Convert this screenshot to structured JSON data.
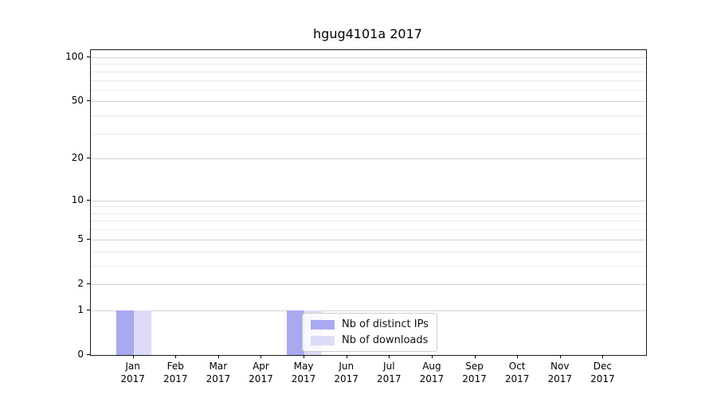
{
  "chart_data": {
    "type": "bar",
    "title": "hgug4101a 2017",
    "categories": [
      "Jan",
      "Feb",
      "Mar",
      "Apr",
      "May",
      "Jun",
      "Jul",
      "Aug",
      "Sep",
      "Oct",
      "Nov",
      "Dec"
    ],
    "year_label": "2017",
    "series": [
      {
        "name": "Nb of distinct IPs",
        "color": "#a9a9f0",
        "values": [
          1,
          0,
          0,
          0,
          1,
          0,
          0,
          0,
          0,
          0,
          0,
          0
        ]
      },
      {
        "name": "Nb of downloads",
        "color": "#dcdcf8",
        "values": [
          1,
          0,
          0,
          0,
          1,
          0,
          0,
          0,
          0,
          0,
          0,
          0
        ]
      }
    ],
    "ylabel": "",
    "xlabel": "",
    "yscale": "log10(1+y)",
    "yticks": [
      0,
      1,
      2,
      5,
      10,
      20,
      50,
      100
    ],
    "minor_gridlines": [
      3,
      4,
      6,
      7,
      8,
      9,
      30,
      40,
      60,
      70,
      80,
      90
    ],
    "ylim": [
      0,
      112
    ],
    "grid": "horizontal",
    "legend_position": "inside-bottom-left-of-center"
  }
}
